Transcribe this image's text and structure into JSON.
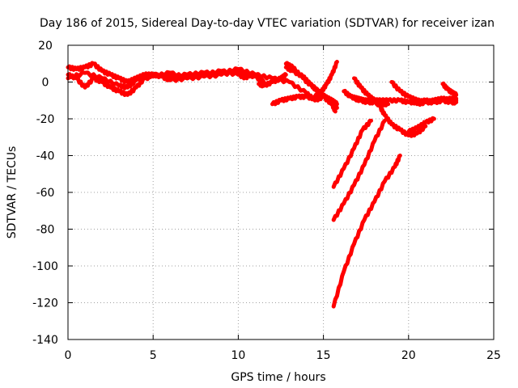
{
  "chart_data": {
    "type": "line",
    "title": "Day 186 of 2015, Sidereal Day-to-day VTEC variation (SDTVAR) for receiver izan",
    "xlabel": "GPS time / hours",
    "ylabel": "SDTVAR / TECUs",
    "xlim": [
      0,
      25
    ],
    "ylim": [
      -140,
      20
    ],
    "x_ticks": [
      0,
      5,
      10,
      15,
      20,
      25
    ],
    "x_tick_labels": [
      "0",
      "5",
      "10",
      "15",
      "20",
      "25"
    ],
    "y_ticks": [
      20,
      0,
      -20,
      -40,
      -60,
      -80,
      -100,
      -120,
      -140
    ],
    "y_tick_labels": [
      "20",
      "0",
      "-20",
      "-40",
      "-60",
      "-80",
      "-100",
      "-120",
      "-140"
    ],
    "grid": true,
    "color": "#ff0000",
    "series": [
      {
        "x": [
          0,
          0.5,
          1,
          1.5,
          2,
          2.5,
          3,
          3.5,
          4,
          4.5,
          5,
          6,
          7,
          8,
          9,
          10,
          11,
          12,
          13,
          14,
          14.5,
          15,
          15.5,
          15.7
        ],
        "y": [
          8,
          7,
          8,
          10,
          6,
          4,
          2,
          0,
          2,
          4,
          4,
          3,
          4,
          5,
          5,
          7,
          4,
          2,
          0,
          -6,
          -10,
          -8,
          -12,
          -16
        ]
      },
      {
        "x": [
          0,
          0.5,
          1,
          1.5,
          2,
          2.5,
          3,
          3.5,
          4,
          4.5,
          5,
          5.5,
          6,
          7,
          8,
          9,
          10,
          10.5,
          11,
          11.5
        ],
        "y": [
          4,
          2,
          -3,
          2,
          0,
          -3,
          -5,
          -7,
          -3,
          2,
          4,
          3,
          1,
          2,
          3,
          4,
          6,
          4,
          3,
          0
        ]
      },
      {
        "x": [
          0,
          1,
          2,
          3,
          3.5,
          4,
          5,
          6,
          7,
          8,
          9,
          10,
          10.5
        ],
        "y": [
          2,
          5,
          2,
          -2,
          -3,
          1,
          3,
          5,
          2,
          4,
          6,
          4,
          2
        ]
      },
      {
        "x": [
          11.2,
          11.5,
          12,
          12.5,
          12.8
        ],
        "y": [
          -1,
          -2,
          0,
          2,
          4
        ]
      },
      {
        "x": [
          12.8,
          13.2,
          13.8,
          14.3,
          14.8,
          15.3,
          15.8
        ],
        "y": [
          10,
          8,
          2,
          -2,
          -6,
          -10,
          -14
        ]
      },
      {
        "x": [
          12.8,
          13.2,
          13.8,
          14.2,
          14.7,
          15.1,
          15.5,
          15.8
        ],
        "y": [
          8,
          6,
          3,
          -1,
          -5,
          -8,
          -10,
          -12
        ]
      },
      {
        "x": [
          12,
          12.5,
          13,
          13.5,
          14,
          14.5,
          15
        ],
        "y": [
          -12,
          -10,
          -9,
          -8,
          -8,
          -9,
          -8
        ]
      },
      {
        "x": [
          14.5,
          14.9,
          15.2,
          15.5,
          15.8
        ],
        "y": [
          -8,
          -5,
          -1,
          4,
          11
        ]
      },
      {
        "x": [
          16.2,
          16.6,
          17.0,
          17.4,
          17.8,
          18.2,
          18.8,
          19.5,
          20.0,
          20.5,
          21.0,
          21.5,
          22.0,
          22.5,
          22.8
        ],
        "y": [
          -5,
          -8,
          -9,
          -10,
          -10,
          -10,
          -10,
          -10,
          -11,
          -11,
          -10,
          -11,
          -10,
          -11,
          -11
        ]
      },
      {
        "x": [
          16.8,
          17.2,
          17.6,
          18.0,
          18.3,
          18.6,
          19.0,
          19.5,
          20.0,
          20.5,
          21.0
        ],
        "y": [
          2,
          -3,
          -7,
          -10,
          -13,
          -18,
          -23,
          -26,
          -29,
          -28,
          -24
        ]
      },
      {
        "x": [
          16.8,
          17.2,
          17.6,
          18.0,
          18.4,
          18.8
        ],
        "y": [
          -9,
          -10,
          -11,
          -11,
          -12,
          -12
        ]
      },
      {
        "x": [
          19.0,
          19.5,
          20.0,
          20.5,
          21.0,
          21.5,
          22.0,
          22.5,
          22.8
        ],
        "y": [
          0,
          -5,
          -8,
          -10,
          -11,
          -11,
          -10,
          -9,
          -10
        ]
      },
      {
        "x": [
          20.5,
          21.0,
          21.5,
          22.0,
          22.5,
          22.8
        ],
        "y": [
          -12,
          -11,
          -10,
          -9,
          -10,
          -9
        ]
      },
      {
        "x": [
          22.0,
          22.3,
          22.6,
          22.8
        ],
        "y": [
          -1,
          -4,
          -6,
          -7
        ]
      },
      {
        "x": [
          15.6,
          16.2,
          16.8,
          17.3,
          17.8
        ],
        "y": [
          -57,
          -47,
          -36,
          -26,
          -21
        ]
      },
      {
        "x": [
          15.6,
          16.2,
          16.8,
          17.4,
          18.0,
          18.6
        ],
        "y": [
          -75,
          -66,
          -56,
          -45,
          -32,
          -21
        ]
      },
      {
        "x": [
          15.6,
          16.2,
          16.8,
          17.4,
          18.0,
          18.6,
          19.2,
          19.5
        ],
        "y": [
          -122,
          -103,
          -88,
          -75,
          -65,
          -54,
          -46,
          -40
        ]
      },
      {
        "x": [
          20.0,
          20.5,
          21.0,
          21.5
        ],
        "y": [
          -27,
          -25,
          -22,
          -20
        ]
      }
    ]
  }
}
